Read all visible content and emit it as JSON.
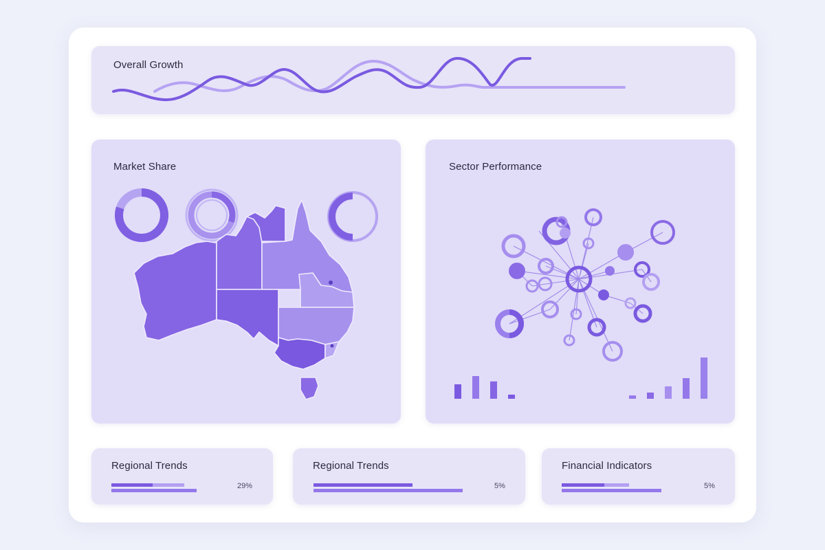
{
  "colors": {
    "background": "#eef1fa",
    "card": "#e4e1f7",
    "accent_dark": "#7a5ae0",
    "accent_mid": "#9478ea",
    "accent_light": "#b7a6f2",
    "text": "#2c2940"
  },
  "overall_growth": {
    "title": "Overall Growth"
  },
  "market_share": {
    "title": "Market Share",
    "donuts": [
      {
        "name": "donut-1",
        "fill": 0.8
      },
      {
        "name": "donut-2",
        "fill": 0.3
      },
      {
        "name": "donut-3",
        "fill": 0.5
      }
    ]
  },
  "sector_performance": {
    "title": "Sector Performance",
    "left_bars": [
      0.35,
      0.55,
      0.42,
      0.1
    ],
    "right_bars": [
      0.08,
      0.15,
      0.3,
      0.5,
      1.0
    ]
  },
  "summary_cards": [
    {
      "title": "Regional Trends",
      "value": "29%",
      "bar_primary": 0.4,
      "bar_secondary": 0.85,
      "bar_track": 1.0
    },
    {
      "title": "Regional Trends",
      "value": "5%",
      "bar_primary": 0.66,
      "bar_secondary": 0.66,
      "bar_track": 1.0
    },
    {
      "title": "Financial Indicators",
      "value": "5%",
      "bar_primary": 0.43,
      "bar_secondary": 0.68,
      "bar_track": 1.0
    }
  ]
}
